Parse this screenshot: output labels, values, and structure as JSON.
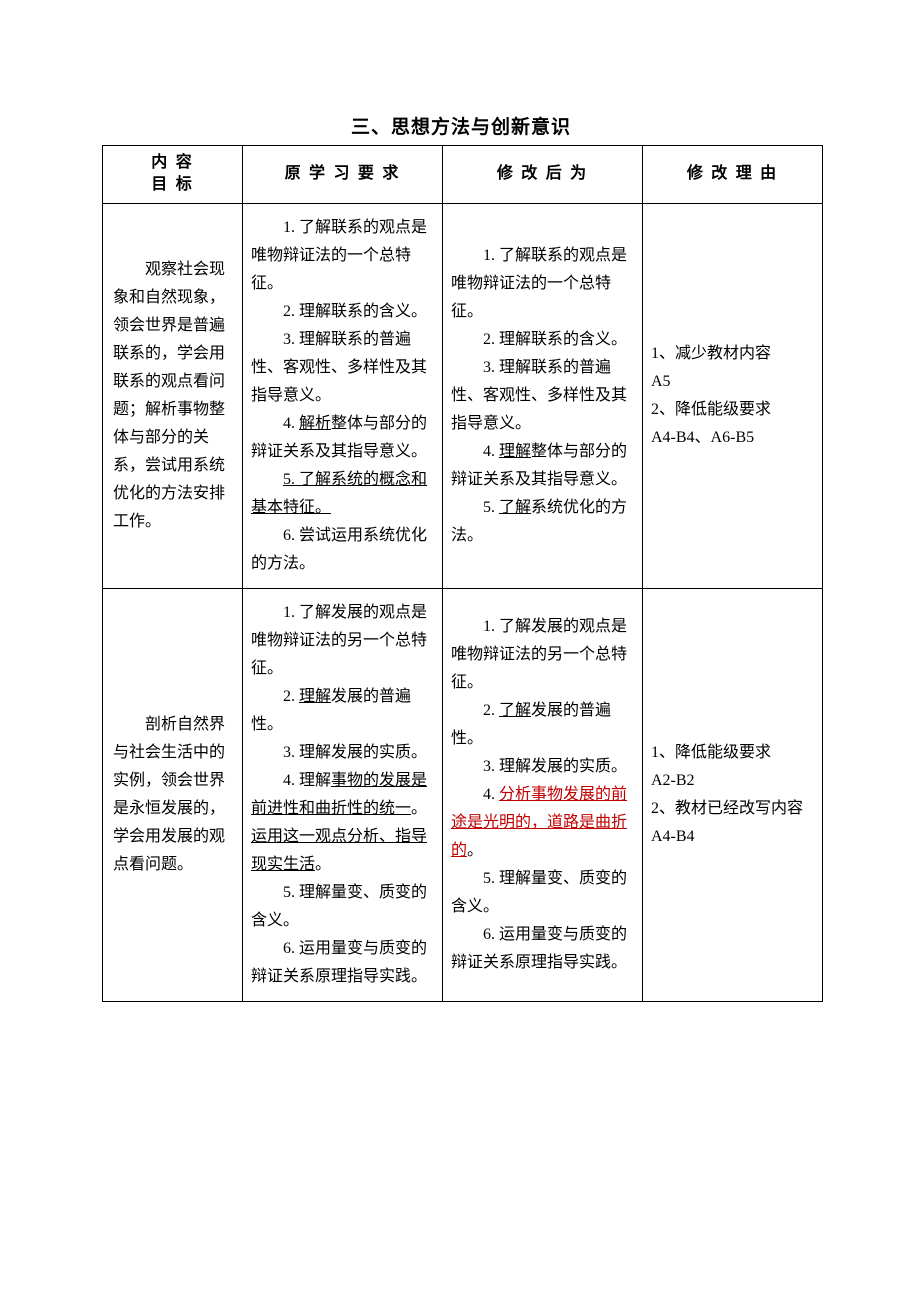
{
  "title": "三、思想方法与创新意识",
  "headers": {
    "col1_line1": "内 容",
    "col1_line2": "目 标",
    "col2": "原 学 习 要 求",
    "col3": "修 改 后 为",
    "col4": "修 改 理 由"
  },
  "rows": [
    {
      "col1": "　　观察社会现象和自然现象，领会世界是普遍联系的，学会用联系的观点看问题；解析事物整体与部分的关系，尝试用系统优化的方法安排工作。",
      "col2": {
        "p1_pre": "1. 了解联系的观点是唯物辩证法的一个总特征。",
        "p2": "2. 理解联系的含义。",
        "p3": "3. 理解联系的普遍性、客观性、多样性及其指导意义。",
        "p4_pre": "4. ",
        "p4_u": "解析",
        "p4_post": "整体与部分的辩证关系及其指导意义。",
        "p5_u": "5. 了解系统的概念和基本特征。",
        "p6": "6. 尝试运用系统优化的方法。"
      },
      "col3": {
        "p1": "1. 了解联系的观点是唯物辩证法的一个总特征。",
        "p2": "2. 理解联系的含义。",
        "p3": "3. 理解联系的普遍性、客观性、多样性及其指导意义。",
        "p4_pre": "4. ",
        "p4_u": "理解",
        "p4_post": "整体与部分的辩证关系及其指导意义。",
        "p5_pre": "5. ",
        "p5_u": "了解",
        "p5_post": "系统优化的方法。"
      },
      "col4": {
        "l1": "1、减少教材内容",
        "l2": "A5",
        "l3": "2、降低能级要求",
        "l4": "A4-B4、A6-B5"
      }
    },
    {
      "col1": "　　剖析自然界与社会生活中的实例，领会世界是永恒发展的，学会用发展的观点看问题。",
      "col2": {
        "p1": "1. 了解发展的观点是唯物辩证法的另一个总特征。",
        "p2_pre": "2. ",
        "p2_u": "理解",
        "p2_post": "发展的普遍性。",
        "p3": "3. 理解发展的实质。",
        "p4_pre": "4. 理解",
        "p4_u1": "事物的发展是前进性和曲折性的统一",
        "p4_mid": "。",
        "p4_u2": "运用这一观点分析、指导现实生活",
        "p4_post": "。",
        "p5": "5. 理解量变、质变的含义。",
        "p6": "6. 运用量变与质变的辩证关系原理指导实践。"
      },
      "col3": {
        "p1": "1. 了解发展的观点是唯物辩证法的另一个总特征。",
        "p2_pre": "2. ",
        "p2_u": "了解",
        "p2_post": "发展的普遍性。",
        "p3": "3. 理解发展的实质。",
        "p4_pre": "4. ",
        "p4_u": "分析事物发展的前途是光明的，道路是曲折的",
        "p4_post": "。",
        "p5": "5. 理解量变、质变的含义。",
        "p6": "6. 运用量变与质变的辩证关系原理指导实践。"
      },
      "col4": {
        "l1": "1、降低能级要求",
        "l2": "A2-B2",
        "l3": "2、教材已经改写内容",
        "l4": "A4-B4"
      }
    }
  ]
}
